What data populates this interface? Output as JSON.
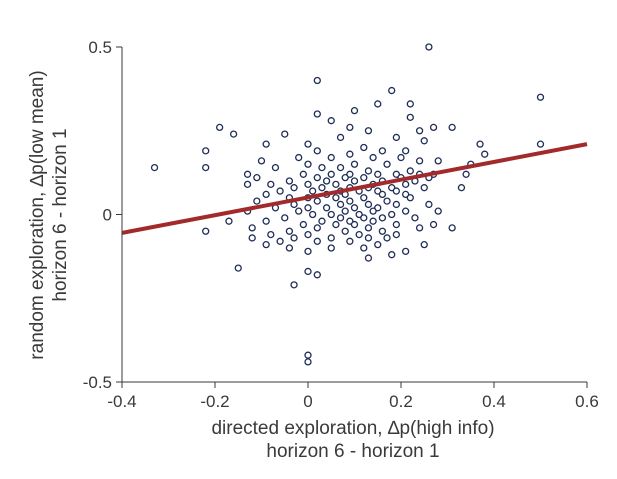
{
  "chart_data": {
    "type": "scatter",
    "title": "",
    "xlabel": [
      "directed exploration, ∆p(high info)",
      "horizon 6 - horizon 1"
    ],
    "ylabel": [
      "random exploration, ∆p(low mean)",
      "horizon 6 - horizon 1"
    ],
    "xlim": [
      -0.4,
      0.6
    ],
    "ylim": [
      -0.5,
      0.5
    ],
    "xticks": [
      -0.4,
      -0.2,
      0,
      0.2,
      0.4,
      0.6
    ],
    "xtick_labels": [
      "-0.4",
      "-0.2",
      "0",
      "0.2",
      "0.4",
      "0.6"
    ],
    "yticks": [
      -0.5,
      0,
      0.5
    ],
    "ytick_labels": [
      "-0.5",
      "0",
      "0.5"
    ],
    "grid": false,
    "marker_color": "#1f2d57",
    "fit_line_color": "#a32a2a",
    "fit_line": {
      "x": [
        -0.4,
        0.6
      ],
      "y": [
        -0.055,
        0.21
      ]
    },
    "points": [
      [
        0.26,
        0.5
      ],
      [
        0.02,
        0.4
      ],
      [
        0.18,
        0.37
      ],
      [
        0.5,
        0.35
      ],
      [
        0.22,
        0.33
      ],
      [
        0.15,
        0.33
      ],
      [
        0.1,
        0.31
      ],
      [
        0.02,
        0.3
      ],
      [
        0.22,
        0.29
      ],
      [
        0.05,
        0.28
      ],
      [
        -0.19,
        0.26
      ],
      [
        0.27,
        0.26
      ],
      [
        0.31,
        0.26
      ],
      [
        0.09,
        0.26
      ],
      [
        0.24,
        0.25
      ],
      [
        0.13,
        0.25
      ],
      [
        -0.16,
        0.24
      ],
      [
        -0.05,
        0.24
      ],
      [
        0.07,
        0.23
      ],
      [
        0.19,
        0.23
      ],
      [
        0.25,
        0.22
      ],
      [
        0.37,
        0.21
      ],
      [
        -0.09,
        0.21
      ],
      [
        0.0,
        0.21
      ],
      [
        0.12,
        0.2
      ],
      [
        0.5,
        0.21
      ],
      [
        0.02,
        0.19
      ],
      [
        0.16,
        0.19
      ],
      [
        0.21,
        0.19
      ],
      [
        -0.22,
        0.19
      ],
      [
        0.38,
        0.18
      ],
      [
        0.09,
        0.18
      ],
      [
        -0.02,
        0.17
      ],
      [
        0.05,
        0.17
      ],
      [
        0.14,
        0.17
      ],
      [
        0.2,
        0.17
      ],
      [
        0.24,
        0.16
      ],
      [
        -0.1,
        0.16
      ],
      [
        0.35,
        0.15
      ],
      [
        0.28,
        0.16
      ],
      [
        0.0,
        0.15
      ],
      [
        0.1,
        0.15
      ],
      [
        0.17,
        0.15
      ],
      [
        -0.33,
        0.14
      ],
      [
        -0.22,
        0.14
      ],
      [
        -0.07,
        0.14
      ],
      [
        0.03,
        0.14
      ],
      [
        0.07,
        0.14
      ],
      [
        0.13,
        0.13
      ],
      [
        0.22,
        0.13
      ],
      [
        0.34,
        0.12
      ],
      [
        -0.13,
        0.12
      ],
      [
        -0.01,
        0.12
      ],
      [
        0.05,
        0.12
      ],
      [
        0.09,
        0.12
      ],
      [
        0.15,
        0.12
      ],
      [
        0.19,
        0.12
      ],
      [
        0.24,
        0.12
      ],
      [
        0.27,
        0.12
      ],
      [
        -0.11,
        0.11
      ],
      [
        0.02,
        0.11
      ],
      [
        0.08,
        0.11
      ],
      [
        0.12,
        0.11
      ],
      [
        0.2,
        0.11
      ],
      [
        0.26,
        0.11
      ],
      [
        -0.04,
        0.1
      ],
      [
        0.04,
        0.1
      ],
      [
        0.1,
        0.1
      ],
      [
        0.16,
        0.1
      ],
      [
        0.23,
        0.1
      ],
      [
        -0.08,
        0.09
      ],
      [
        0.0,
        0.09
      ],
      [
        0.06,
        0.09
      ],
      [
        0.14,
        0.09
      ],
      [
        0.21,
        0.09
      ],
      [
        0.33,
        0.08
      ],
      [
        -0.13,
        0.09
      ],
      [
        -0.03,
        0.08
      ],
      [
        0.03,
        0.08
      ],
      [
        0.09,
        0.08
      ],
      [
        0.13,
        0.08
      ],
      [
        0.18,
        0.08
      ],
      [
        0.25,
        0.08
      ],
      [
        0.11,
        0.07
      ],
      [
        0.07,
        0.07
      ],
      [
        -0.06,
        0.07
      ],
      [
        0.01,
        0.07
      ],
      [
        0.15,
        0.07
      ],
      [
        0.19,
        0.07
      ],
      [
        -0.09,
        0.06
      ],
      [
        0.04,
        0.06
      ],
      [
        0.08,
        0.06
      ],
      [
        0.16,
        0.06
      ],
      [
        0.21,
        0.06
      ],
      [
        0.0,
        0.05
      ],
      [
        0.06,
        0.05
      ],
      [
        0.12,
        0.05
      ],
      [
        0.22,
        0.05
      ],
      [
        -0.04,
        0.05
      ],
      [
        0.02,
        0.04
      ],
      [
        0.09,
        0.04
      ],
      [
        0.17,
        0.04
      ],
      [
        -0.11,
        0.04
      ],
      [
        0.07,
        0.03
      ],
      [
        0.13,
        0.03
      ],
      [
        0.19,
        0.03
      ],
      [
        0.26,
        0.03
      ],
      [
        -0.03,
        0.03
      ],
      [
        0.04,
        0.02
      ],
      [
        0.1,
        0.02
      ],
      [
        0.15,
        0.02
      ],
      [
        -0.07,
        0.02
      ],
      [
        0.0,
        0.02
      ],
      [
        0.08,
        0.01
      ],
      [
        0.14,
        0.01
      ],
      [
        0.21,
        0.01
      ],
      [
        0.28,
        0.01
      ],
      [
        -0.13,
        0.01
      ],
      [
        -0.02,
        0.01
      ],
      [
        0.05,
        0.0
      ],
      [
        0.11,
        0.0
      ],
      [
        0.18,
        0.0
      ],
      [
        0.01,
        0.0
      ],
      [
        -0.05,
        -0.01
      ],
      [
        0.07,
        -0.01
      ],
      [
        0.12,
        -0.01
      ],
      [
        0.16,
        -0.01
      ],
      [
        0.23,
        -0.01
      ],
      [
        -0.09,
        -0.02
      ],
      [
        0.03,
        -0.02
      ],
      [
        0.09,
        -0.02
      ],
      [
        0.14,
        -0.02
      ],
      [
        -0.17,
        -0.02
      ],
      [
        -0.01,
        -0.03
      ],
      [
        0.06,
        -0.03
      ],
      [
        0.1,
        -0.03
      ],
      [
        0.19,
        -0.03
      ],
      [
        0.27,
        -0.03
      ],
      [
        -0.12,
        -0.04
      ],
      [
        0.02,
        -0.04
      ],
      [
        0.13,
        -0.04
      ],
      [
        0.24,
        -0.04
      ],
      [
        0.31,
        -0.04
      ],
      [
        -0.22,
        -0.05
      ],
      [
        -0.04,
        -0.05
      ],
      [
        0.08,
        -0.05
      ],
      [
        0.16,
        -0.05
      ],
      [
        -0.08,
        -0.06
      ],
      [
        0.0,
        -0.06
      ],
      [
        0.11,
        -0.06
      ],
      [
        0.19,
        -0.06
      ],
      [
        -0.12,
        -0.07
      ],
      [
        -0.03,
        -0.07
      ],
      [
        0.05,
        -0.07
      ],
      [
        0.13,
        -0.07
      ],
      [
        0.17,
        -0.07
      ],
      [
        -0.06,
        -0.08
      ],
      [
        0.02,
        -0.08
      ],
      [
        0.09,
        -0.08
      ],
      [
        0.15,
        -0.09
      ],
      [
        0.25,
        -0.09
      ],
      [
        -0.09,
        -0.09
      ],
      [
        0.05,
        -0.1
      ],
      [
        0.12,
        -0.1
      ],
      [
        0.21,
        -0.11
      ],
      [
        -0.04,
        -0.1
      ],
      [
        0.0,
        -0.11
      ],
      [
        0.18,
        -0.12
      ],
      [
        0.13,
        -0.13
      ],
      [
        -0.15,
        -0.16
      ],
      [
        0.0,
        -0.17
      ],
      [
        0.02,
        -0.18
      ],
      [
        -0.03,
        -0.21
      ],
      [
        0.0,
        -0.42
      ],
      [
        0.0,
        -0.44
      ]
    ]
  }
}
